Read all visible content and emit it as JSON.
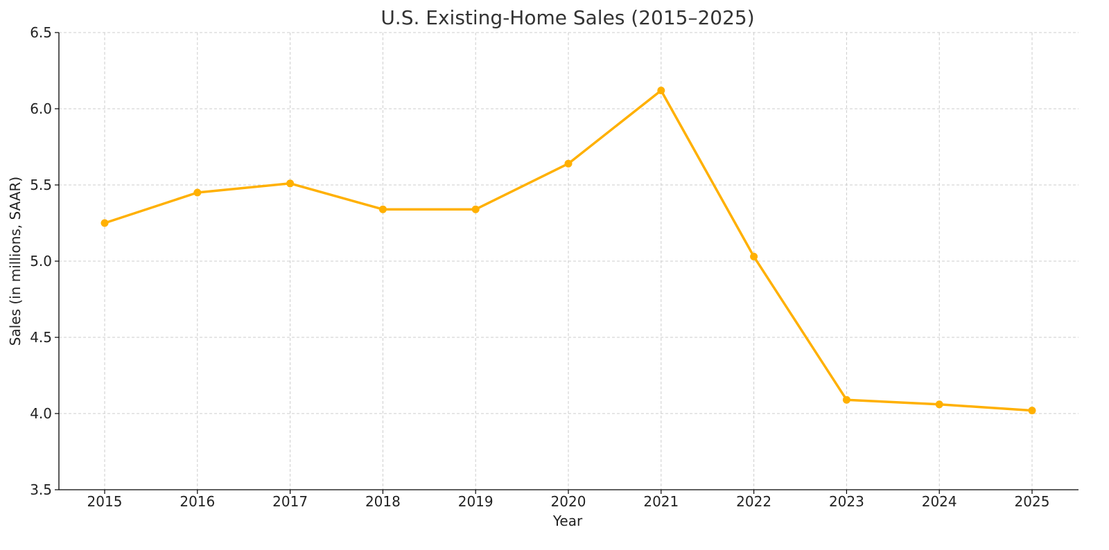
{
  "chart_data": {
    "type": "line",
    "title": "U.S. Existing-Home Sales (2015–2025)",
    "xlabel": "Year",
    "ylabel": "Sales (in millions, SAAR)",
    "x": [
      "2015",
      "2016",
      "2017",
      "2018",
      "2019",
      "2020",
      "2021",
      "2022",
      "2023",
      "2024",
      "2025"
    ],
    "series": [
      {
        "values": [
          5.25,
          5.45,
          5.51,
          5.34,
          5.34,
          5.64,
          6.12,
          5.03,
          4.09,
          4.06,
          4.02
        ],
        "color": "#FFB000",
        "marker": "circle"
      }
    ],
    "ylim": [
      3.5,
      6.5
    ],
    "yticks": [
      "3.5",
      "4.0",
      "4.5",
      "5.0",
      "5.5",
      "6.0",
      "6.5"
    ],
    "grid": true,
    "legend": false
  }
}
